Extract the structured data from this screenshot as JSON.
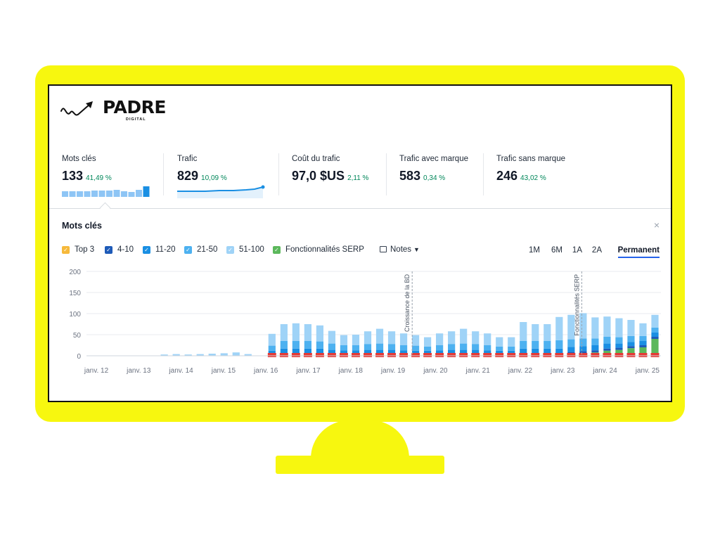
{
  "brand": {
    "name": "PADRE",
    "subtitle": "DIGITAL"
  },
  "metrics": [
    {
      "label": "Mots clés",
      "value": "133",
      "change": "41,49 %"
    },
    {
      "label": "Trafic",
      "value": "829",
      "change": "10,09 %"
    },
    {
      "label": "Coût du trafic",
      "value": "97,0 $US",
      "change": "2,11 %"
    },
    {
      "label": "Trafic avec marque",
      "value": "583",
      "change": "0,34 %"
    },
    {
      "label": "Trafic sans marque",
      "value": "246",
      "change": "43,02 %"
    }
  ],
  "panel": {
    "title": "Mots clés",
    "close": "×"
  },
  "legend": [
    {
      "label": "Top 3",
      "color": "#f6b93b"
    },
    {
      "label": "4-10",
      "color": "#1e5bb8"
    },
    {
      "label": "11-20",
      "color": "#1a8fe3"
    },
    {
      "label": "21-50",
      "color": "#4db1f0"
    },
    {
      "label": "51-100",
      "color": "#9fd3f7"
    },
    {
      "label": "Fonctionnalités SERP",
      "color": "#5cb85c"
    }
  ],
  "notes_label": "Notes",
  "ranges": [
    "1M",
    "6M",
    "1A",
    "2A",
    "Permanent"
  ],
  "active_range": "Permanent",
  "chart_data": {
    "type": "bar",
    "y_ticks": [
      "200",
      "150",
      "100",
      "50",
      "0"
    ],
    "ylim": [
      0,
      200
    ],
    "x_labels": [
      "janv. 12",
      "janv. 13",
      "janv. 14",
      "janv. 15",
      "janv. 16",
      "janv. 17",
      "janv. 18",
      "janv. 19",
      "janv. 20",
      "janv. 21",
      "janv. 22",
      "janv. 23",
      "janv. 24",
      "janv. 25"
    ],
    "annotations": [
      {
        "label": "Croissance de la BD",
        "at": "janv. 19"
      },
      {
        "label": "Fonctionnalités SERP",
        "at": "janv. 23"
      }
    ],
    "series": [
      {
        "name": "51-100",
        "color": "#9fd3f7",
        "values": [
          0,
          0,
          0,
          0,
          0,
          0,
          3,
          4,
          3,
          4,
          5,
          6,
          8,
          4,
          0,
          28,
          40,
          42,
          40,
          38,
          30,
          24,
          25,
          30,
          35,
          30,
          28,
          25,
          22,
          28,
          30,
          35,
          30,
          28,
          22,
          22,
          45,
          40,
          40,
          55,
          58,
          60,
          50,
          48,
          45,
          38,
          30,
          30
        ]
      },
      {
        "name": "21-50",
        "color": "#4db1f0",
        "values": [
          0,
          0,
          0,
          0,
          0,
          0,
          0,
          0,
          0,
          0,
          0,
          0,
          0,
          0,
          0,
          12,
          18,
          18,
          18,
          17,
          15,
          12,
          12,
          14,
          15,
          14,
          12,
          12,
          10,
          12,
          14,
          15,
          14,
          12,
          10,
          10,
          18,
          18,
          18,
          20,
          18,
          18,
          16,
          16,
          15,
          14,
          12,
          12
        ]
      },
      {
        "name": "11-20",
        "color": "#1a8fe3",
        "values": [
          0,
          0,
          0,
          0,
          0,
          0,
          0,
          0,
          0,
          0,
          0,
          0,
          0,
          0,
          0,
          8,
          12,
          12,
          12,
          12,
          10,
          9,
          9,
          10,
          10,
          10,
          9,
          8,
          8,
          9,
          10,
          10,
          10,
          9,
          8,
          8,
          12,
          12,
          12,
          12,
          12,
          12,
          12,
          12,
          10,
          10,
          10,
          10
        ]
      },
      {
        "name": "4-10",
        "color": "#1e5bb8",
        "values": [
          0,
          0,
          0,
          0,
          0,
          0,
          0,
          0,
          0,
          0,
          0,
          0,
          0,
          0,
          0,
          4,
          5,
          5,
          5,
          5,
          4,
          4,
          4,
          4,
          4,
          4,
          4,
          4,
          4,
          4,
          4,
          4,
          4,
          4,
          4,
          4,
          5,
          5,
          5,
          5,
          5,
          5,
          5,
          5,
          5,
          5,
          5,
          5
        ]
      },
      {
        "name": "Fonctionnalités SERP",
        "color": "#5cb85c",
        "values": [
          0,
          0,
          0,
          0,
          0,
          0,
          0,
          0,
          0,
          0,
          0,
          0,
          0,
          0,
          0,
          0,
          0,
          0,
          0,
          0,
          0,
          0,
          0,
          0,
          0,
          0,
          0,
          0,
          0,
          0,
          0,
          0,
          0,
          0,
          0,
          0,
          0,
          0,
          0,
          0,
          4,
          6,
          8,
          12,
          14,
          18,
          20,
          40
        ]
      }
    ]
  }
}
